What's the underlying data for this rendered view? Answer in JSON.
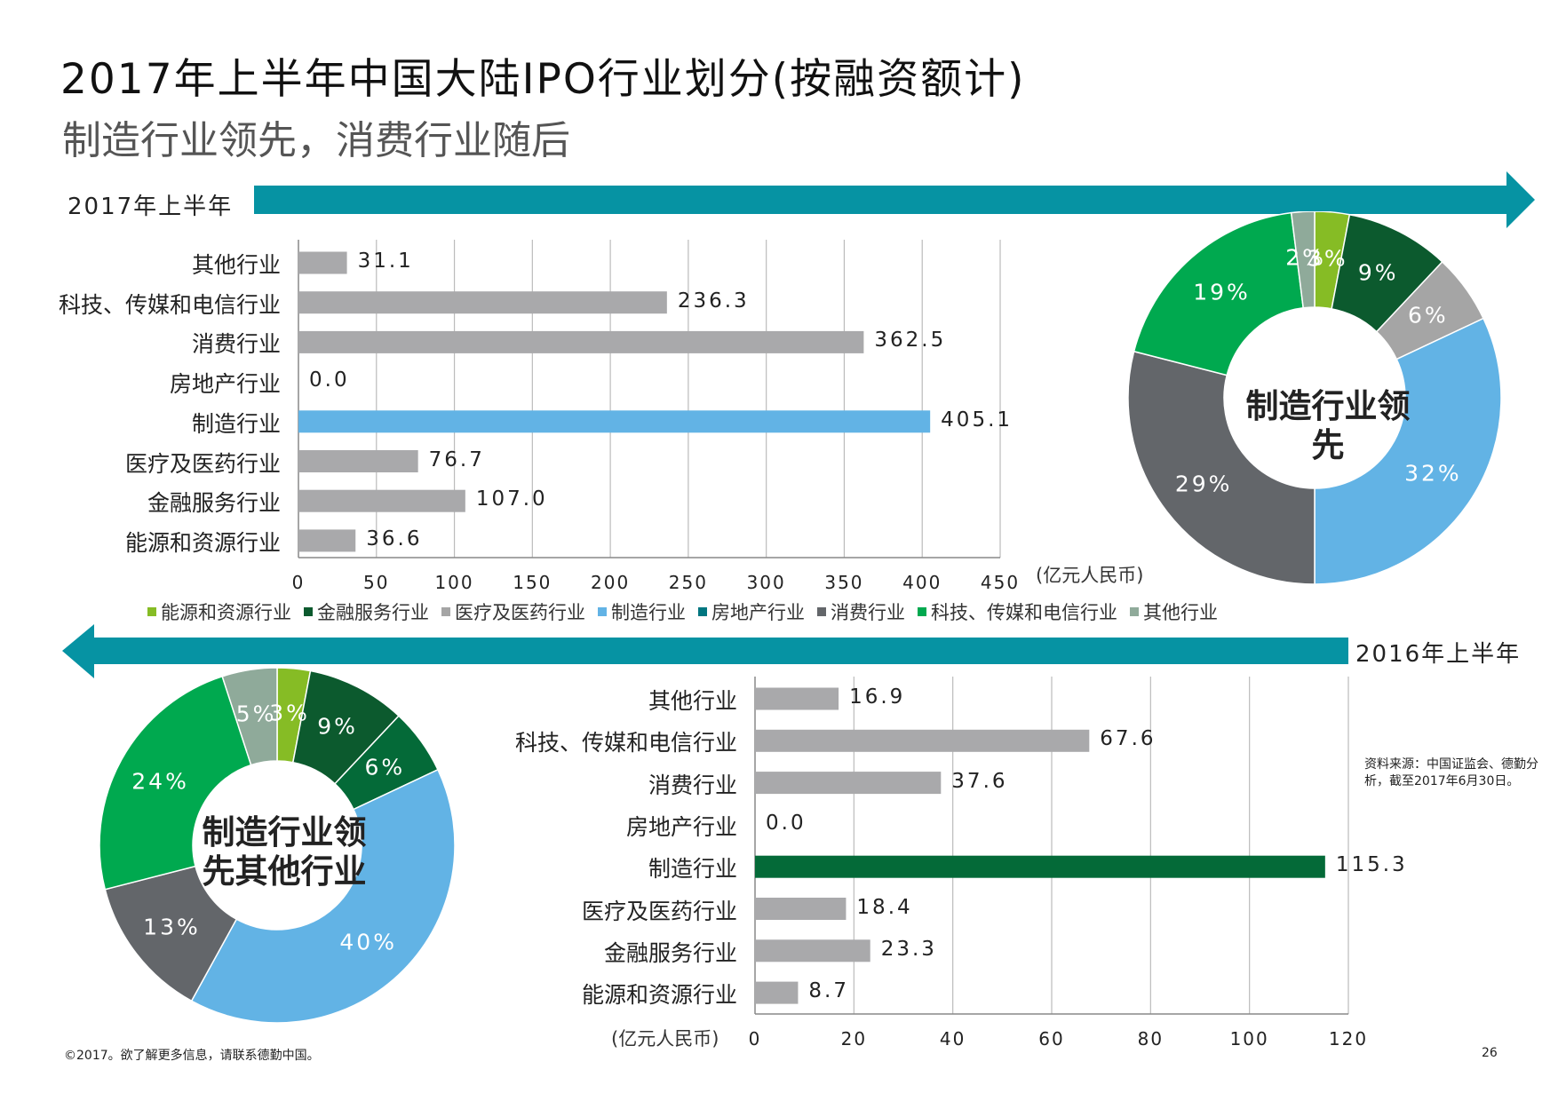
{
  "title": "2017年上半年中国大陆IPO行业划分(按融资额计)",
  "subtitle": "制造行业领先，消费行业随后",
  "colors": {
    "arrow": "#0693a3",
    "gray_bar": "#a9a9ab",
    "blue_bar": "#62b3e5",
    "green_bar": "#046a38"
  },
  "legend": [
    {
      "label": "能源和资源行业",
      "color": "#86bc25"
    },
    {
      "label": "金融服务行业",
      "color": "#0c5a2e"
    },
    {
      "label": "医疗及医药行业",
      "color": "#a5a5a5"
    },
    {
      "label": "制造行业",
      "color": "#62b3e5"
    },
    {
      "label": "房地产行业",
      "color": "#007680"
    },
    {
      "label": "消费行业",
      "color": "#63666a"
    },
    {
      "label": "科技、传媒和电信行业",
      "color": "#00a94f"
    },
    {
      "label": "其他行业",
      "color": "#8faa9a"
    }
  ],
  "source": "资料来源：中国证监会、德勤分析，截至2017年6月30日。",
  "footer": "©2017。欲了解更多信息，请联系德勤中国。",
  "page_number": "26",
  "chart_data": [
    {
      "type": "bar",
      "period_label": "2017年上半年",
      "unit_label": "(亿元人民币)",
      "categories": [
        "其他行业",
        "科技、传媒和电信行业",
        "消费行业",
        "房地产行业",
        "制造行业",
        "医疗及医药行业",
        "金融服务行业",
        "能源和资源行业"
      ],
      "values": [
        31.1,
        236.3,
        362.5,
        0.0,
        405.1,
        76.7,
        107.0,
        36.6
      ],
      "value_labels": [
        "31.1",
        "236.3",
        "362.5",
        "0.0",
        "405.1",
        "76.7",
        "107.0",
        "36.6"
      ],
      "highlight_category": "制造行业",
      "highlight_color": "#62b3e5",
      "xlim": [
        0,
        450
      ],
      "x_ticks": [
        "0",
        "50",
        "100",
        "150",
        "200",
        "250",
        "300",
        "350",
        "400",
        "450"
      ],
      "grid": true
    },
    {
      "type": "pie",
      "period_label": "2017年上半年",
      "center_label": "制造行业领先",
      "slices": [
        {
          "category": "能源和资源行业",
          "value": 3,
          "label": "3%",
          "color": "#86bc25"
        },
        {
          "category": "金融服务行业",
          "value": 9,
          "label": "9%",
          "color": "#0c5a2e"
        },
        {
          "category": "医疗及医药行业",
          "value": 6,
          "label": "6%",
          "color": "#a5a5a5"
        },
        {
          "category": "制造行业",
          "value": 32,
          "label": "32%",
          "color": "#62b3e5"
        },
        {
          "category": "房地产行业",
          "value": 0,
          "label": "",
          "color": "#007680"
        },
        {
          "category": "消费行业",
          "value": 29,
          "label": "29%",
          "color": "#63666a"
        },
        {
          "category": "科技、传媒和电信行业",
          "value": 19,
          "label": "19%",
          "color": "#00a94f"
        },
        {
          "category": "其他行业",
          "value": 2,
          "label": "2%",
          "color": "#8faa9a"
        }
      ]
    },
    {
      "type": "bar",
      "period_label": "2016年上半年",
      "unit_label": "(亿元人民币)",
      "categories": [
        "其他行业",
        "科技、传媒和电信行业",
        "消费行业",
        "房地产行业",
        "制造行业",
        "医疗及医药行业",
        "金融服务行业",
        "能源和资源行业"
      ],
      "values": [
        16.9,
        67.6,
        37.6,
        0.0,
        115.3,
        18.4,
        23.3,
        8.7
      ],
      "value_labels": [
        "16.9",
        "67.6",
        "37.6",
        "0.0",
        "115.3",
        "18.4",
        "23.3",
        "8.7"
      ],
      "highlight_category": "制造行业",
      "highlight_color": "#046a38",
      "xlim": [
        0,
        120
      ],
      "x_ticks": [
        "0",
        "20",
        "40",
        "60",
        "80",
        "100",
        "120"
      ],
      "grid": true
    },
    {
      "type": "pie",
      "period_label": "2016年上半年",
      "center_label": "制造行业领先其他行业",
      "slices": [
        {
          "category": "能源和资源行业",
          "value": 3,
          "label": "3%",
          "color": "#86bc25"
        },
        {
          "category": "金融服务行业",
          "value": 9,
          "label": "9%",
          "color": "#0c5a2e"
        },
        {
          "category": "医疗及医药行业",
          "value": 6,
          "label": "6%",
          "color": "#046a38"
        },
        {
          "category": "制造行业",
          "value": 40,
          "label": "40%",
          "color": "#62b3e5"
        },
        {
          "category": "房地产行业",
          "value": 0,
          "label": "",
          "color": "#007680"
        },
        {
          "category": "消费行业",
          "value": 13,
          "label": "13%",
          "color": "#63666a"
        },
        {
          "category": "科技、传媒和电信行业",
          "value": 24,
          "label": "24%",
          "color": "#00a94f"
        },
        {
          "category": "其他行业",
          "value": 5,
          "label": "5%",
          "color": "#8faa9a"
        }
      ]
    }
  ]
}
